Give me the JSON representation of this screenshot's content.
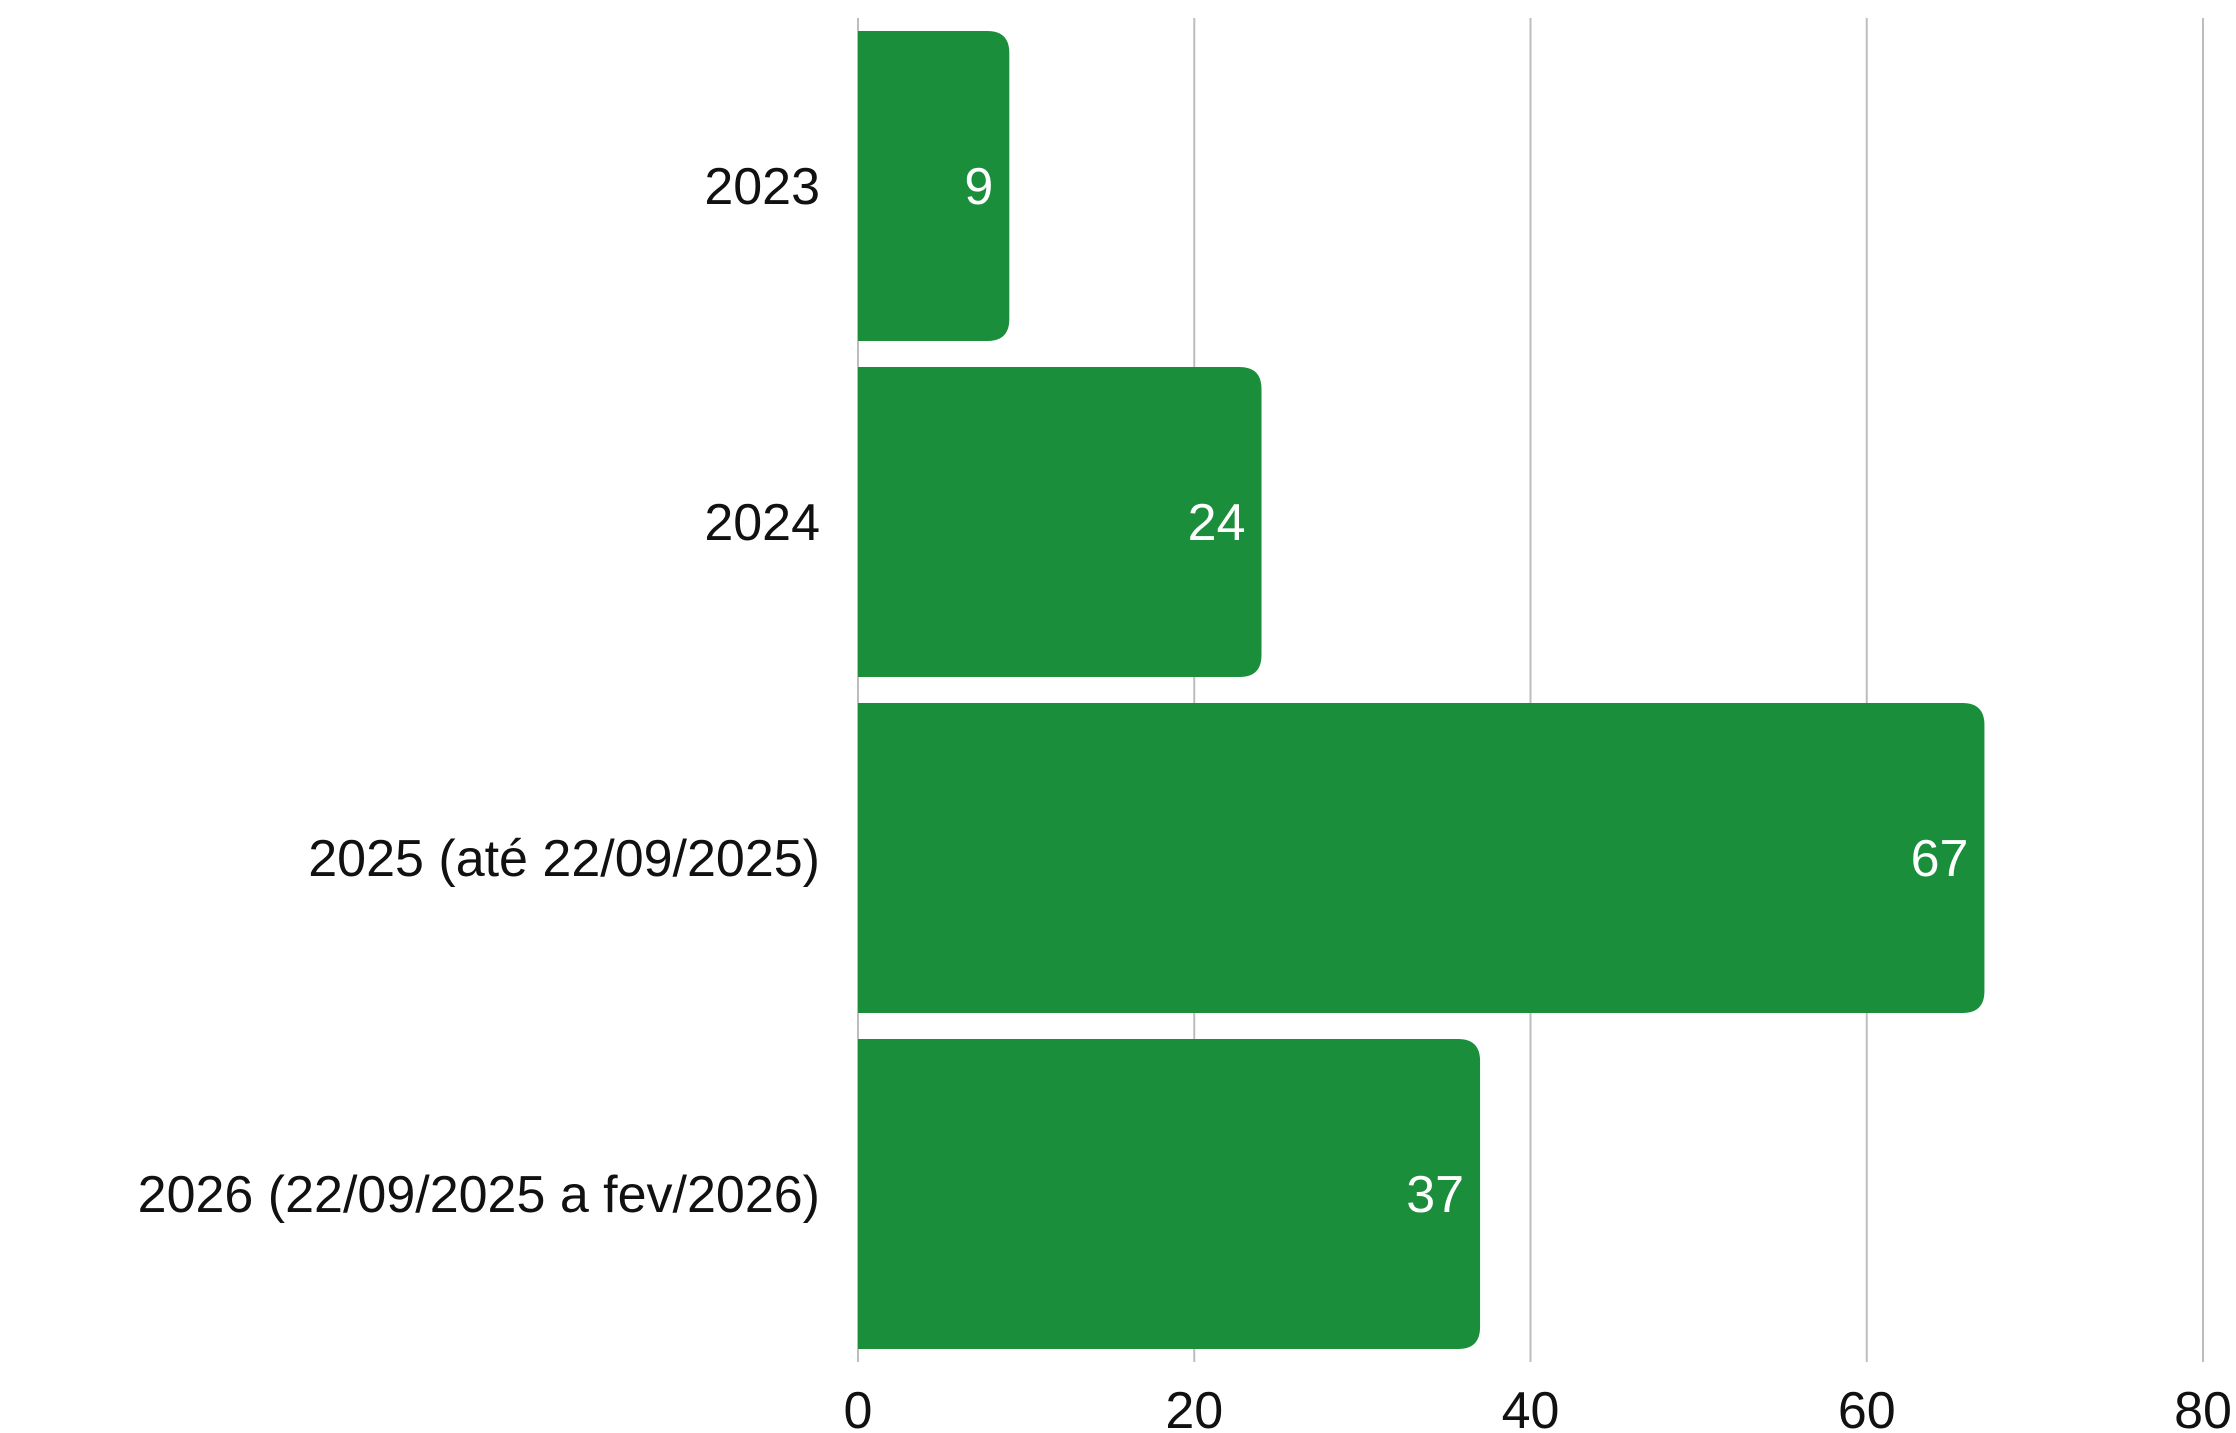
{
  "chart_data": {
    "type": "bar",
    "orientation": "horizontal",
    "categories": [
      "2023",
      "2024",
      "2025 (até 22/09/2025)",
      "2026 (22/09/2025 a fev/2026)"
    ],
    "values": [
      9,
      24,
      67,
      37
    ],
    "data_labels": [
      "9",
      "24",
      "67",
      "37"
    ],
    "xlim": [
      0,
      80
    ],
    "x_ticks": [
      0,
      20,
      40,
      60,
      80
    ],
    "x_tick_labels": [
      "0",
      "20",
      "40",
      "60",
      "80"
    ],
    "title": "",
    "xlabel": "",
    "ylabel": "",
    "grid": "vertical",
    "legend": "none",
    "colors": {
      "bar": "#1a8e3a",
      "grid": "#bdbdbd",
      "text": "#111111",
      "data_label": "#ffffff"
    }
  }
}
